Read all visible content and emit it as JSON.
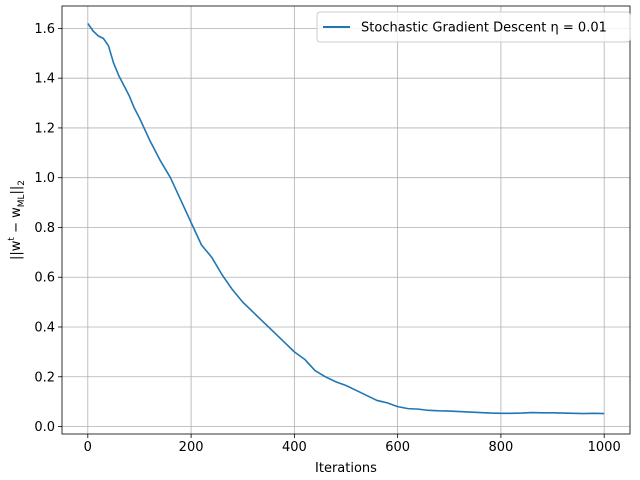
{
  "chart_data": {
    "type": "line",
    "xlabel": "Iterations",
    "ylabel": "||w",
    "ylabel_sup": "t",
    "ylabel_mid": " − w",
    "ylabel_sub": "ML",
    "ylabel_end": "||",
    "ylabel_sub2": "2",
    "xlim": [
      -50,
      1050
    ],
    "ylim": [
      -0.03,
      1.69
    ],
    "xticks": [
      0,
      200,
      400,
      600,
      800,
      1000
    ],
    "xtick_labels": [
      "0",
      "200",
      "400",
      "600",
      "800",
      "1000"
    ],
    "yticks": [
      0.0,
      0.2,
      0.4,
      0.6,
      0.8,
      1.0,
      1.2,
      1.4,
      1.6
    ],
    "ytick_labels": [
      "0.0",
      "0.2",
      "0.4",
      "0.6",
      "0.8",
      "1.0",
      "1.2",
      "1.4",
      "1.6"
    ],
    "grid": true,
    "legend_position": "top-right",
    "series": [
      {
        "name": "Stochastic Gradient Descent η = 0.01",
        "color": "#1f77b4",
        "x": [
          0,
          10,
          20,
          30,
          40,
          50,
          60,
          70,
          80,
          90,
          100,
          120,
          140,
          160,
          180,
          200,
          220,
          240,
          260,
          280,
          300,
          320,
          340,
          360,
          380,
          400,
          420,
          440,
          460,
          480,
          500,
          520,
          540,
          560,
          580,
          600,
          620,
          640,
          660,
          680,
          700,
          720,
          740,
          760,
          780,
          800,
          820,
          840,
          860,
          880,
          900,
          920,
          940,
          960,
          980,
          1000
        ],
        "y": [
          1.62,
          1.59,
          1.57,
          1.56,
          1.53,
          1.46,
          1.41,
          1.37,
          1.33,
          1.28,
          1.24,
          1.15,
          1.07,
          1.0,
          0.91,
          0.82,
          0.73,
          0.68,
          0.61,
          0.55,
          0.5,
          0.46,
          0.42,
          0.38,
          0.34,
          0.3,
          0.27,
          0.225,
          0.2,
          0.18,
          0.165,
          0.145,
          0.125,
          0.105,
          0.095,
          0.08,
          0.072,
          0.07,
          0.065,
          0.063,
          0.062,
          0.06,
          0.058,
          0.056,
          0.054,
          0.053,
          0.053,
          0.054,
          0.056,
          0.055,
          0.055,
          0.054,
          0.053,
          0.052,
          0.053,
          0.052
        ]
      }
    ]
  }
}
